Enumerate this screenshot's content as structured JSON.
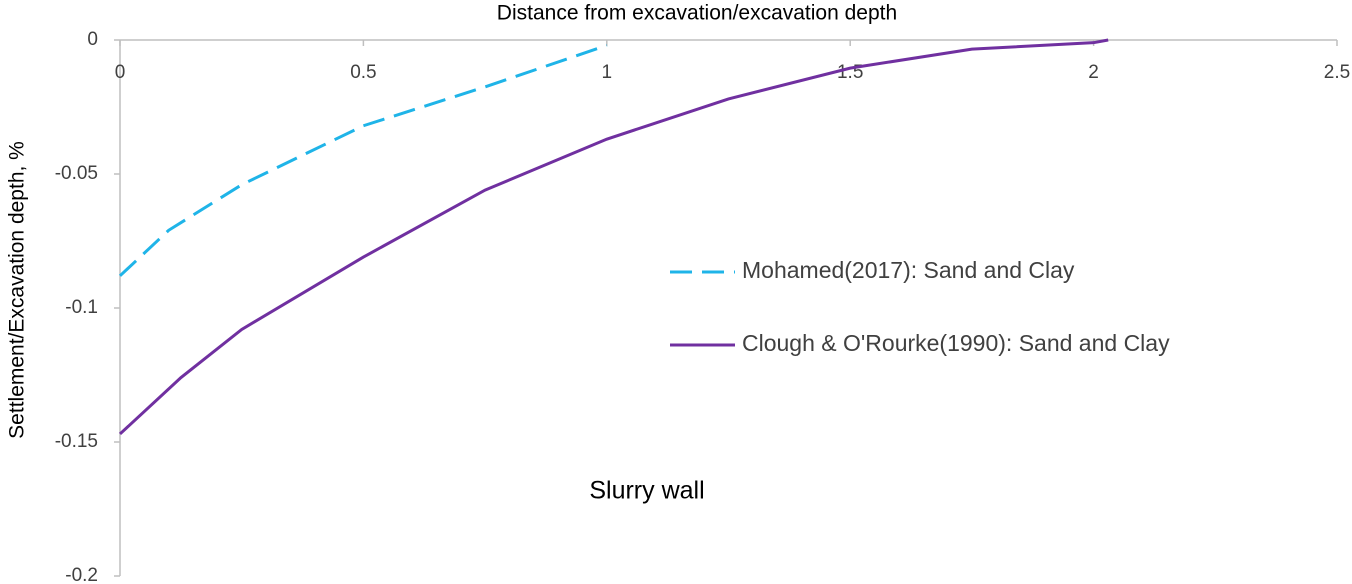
{
  "chart_data": {
    "type": "line",
    "title": "Distance from excavation/excavation depth",
    "y_label": "Settlement/Excavation depth, %",
    "annotation": "Slurry wall",
    "xlim": [
      0,
      2.5
    ],
    "xticks": [
      0,
      0.5,
      1,
      1.5,
      2,
      2.5
    ],
    "ylim": [
      -0.2,
      0
    ],
    "yticks": [
      0,
      -0.05,
      -0.1,
      -0.15,
      -0.2
    ],
    "grid": false,
    "legend": "right",
    "series": [
      {
        "name": "Mohamed(2017): Sand and Clay",
        "color": "#1fb4e8",
        "line_style": "dashed",
        "x": [
          0,
          0.1,
          0.25,
          0.5,
          0.75,
          1.0
        ],
        "values": [
          -0.088,
          -0.071,
          -0.054,
          -0.032,
          -0.0175,
          -0.002
        ]
      },
      {
        "name": "Clough & O'Rourke(1990): Sand and Clay",
        "color": "#7030a0",
        "line_style": "solid",
        "x": [
          0,
          0.125,
          0.25,
          0.5,
          0.75,
          1.0,
          1.25,
          1.5,
          1.75,
          2.0,
          2.03
        ],
        "values": [
          -0.147,
          -0.126,
          -0.108,
          -0.081,
          -0.056,
          -0.037,
          -0.022,
          -0.0105,
          -0.0034,
          -0.001,
          0
        ]
      }
    ]
  }
}
